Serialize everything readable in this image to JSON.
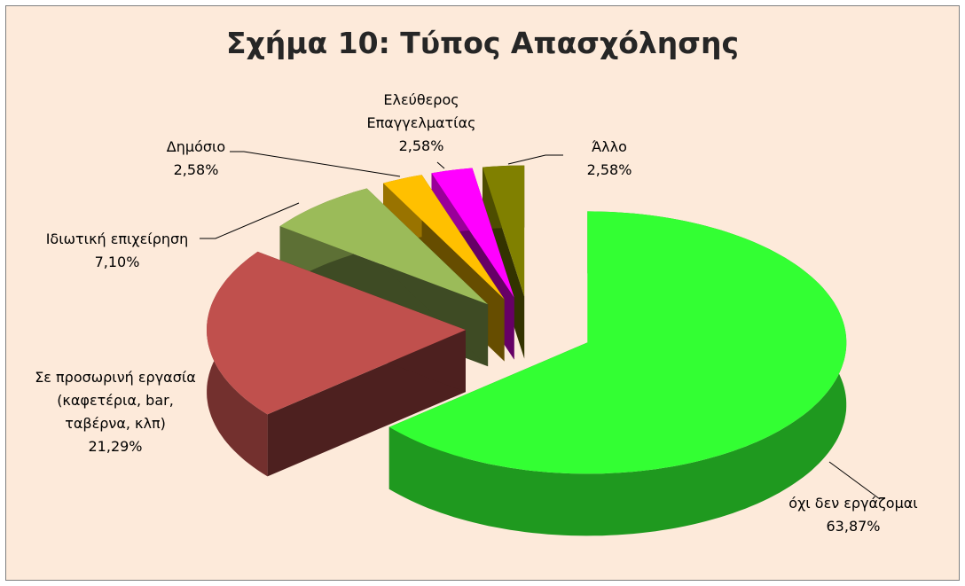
{
  "chart_data": {
    "type": "pie3d",
    "title": "Σχήμα 10: Τύπος Απασχόλησης",
    "categories": [
      "όχι δεν εργάζομαι",
      "Σε προσωρινή εργασία (καφετέρια, bar, ταβέρνα, κλπ)",
      "Ιδιωτική επιχείρηση",
      "Δημόσιο",
      "Ελεύθερος Επαγγελματίας",
      "Άλλο"
    ],
    "values": [
      63.87,
      21.29,
      7.1,
      2.58,
      2.58,
      2.58
    ],
    "value_labels": [
      "63,87%",
      "21,29%",
      "7,10%",
      "2,58%",
      "2,58%",
      "2,58%"
    ],
    "colors": [
      "#33ff33",
      "#c0504d",
      "#9bbb59",
      "#ffc000",
      "#ff00ff",
      "#808000"
    ]
  }
}
